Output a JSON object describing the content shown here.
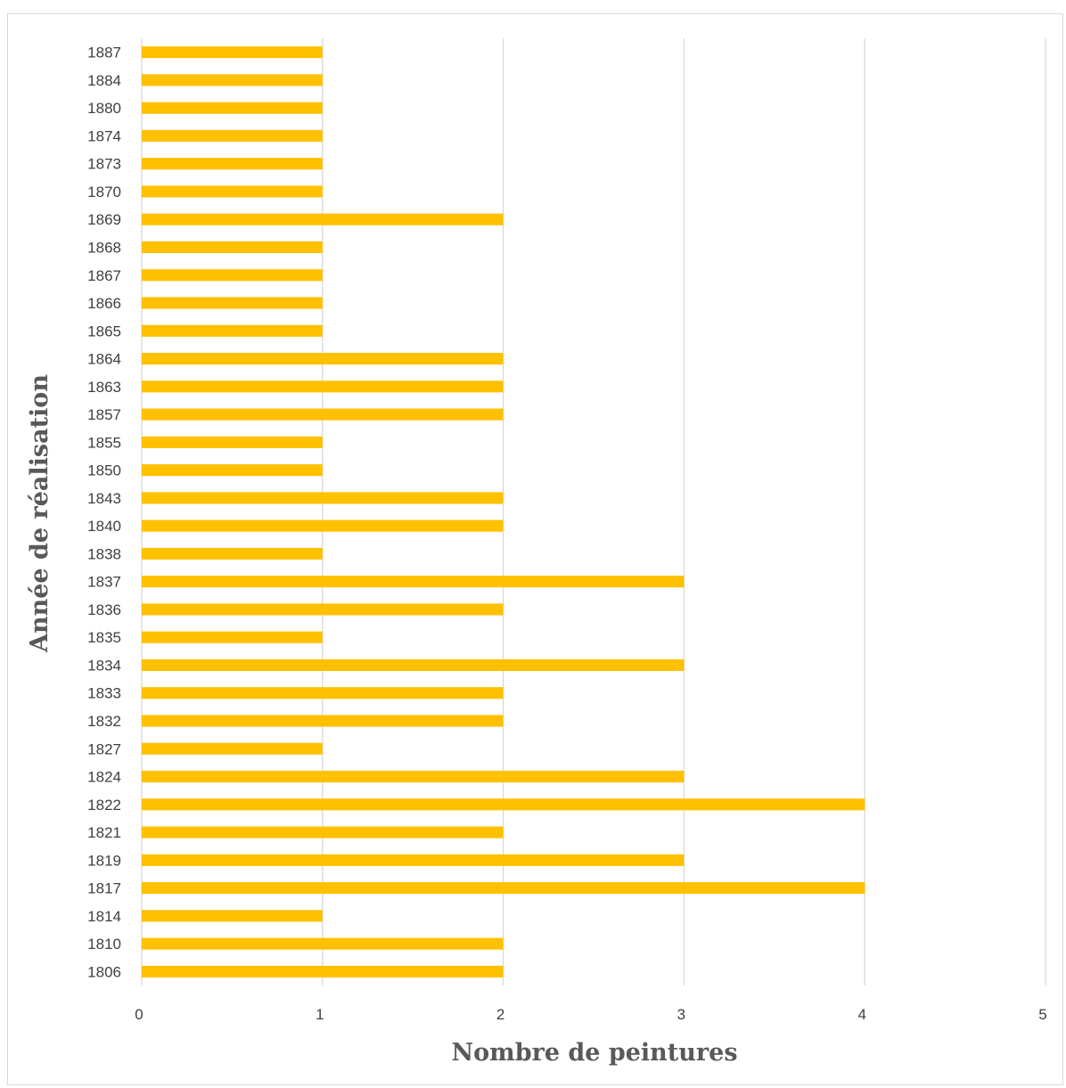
{
  "chart_data": {
    "type": "bar",
    "orientation": "horizontal",
    "xlabel": "Nombre de peintures",
    "ylabel": "Année de réalisation",
    "xlim": [
      0,
      5
    ],
    "xticks": [
      "0",
      "1",
      "2",
      "3",
      "4",
      "5"
    ],
    "grid": "vertical",
    "legend": "none",
    "bar_color": "#ffc000",
    "categories": [
      "1806",
      "1810",
      "1814",
      "1817",
      "1819",
      "1821",
      "1822",
      "1824",
      "1827",
      "1832",
      "1833",
      "1834",
      "1835",
      "1836",
      "1837",
      "1838",
      "1840",
      "1843",
      "1850",
      "1855",
      "1857",
      "1863",
      "1864",
      "1865",
      "1866",
      "1867",
      "1868",
      "1869",
      "1870",
      "1873",
      "1874",
      "1880",
      "1884",
      "1887"
    ],
    "values": [
      2,
      2,
      1,
      4,
      3,
      2,
      4,
      3,
      1,
      2,
      2,
      3,
      1,
      2,
      3,
      1,
      2,
      2,
      1,
      1,
      2,
      2,
      2,
      1,
      1,
      1,
      1,
      2,
      1,
      1,
      1,
      1,
      1,
      1
    ]
  }
}
